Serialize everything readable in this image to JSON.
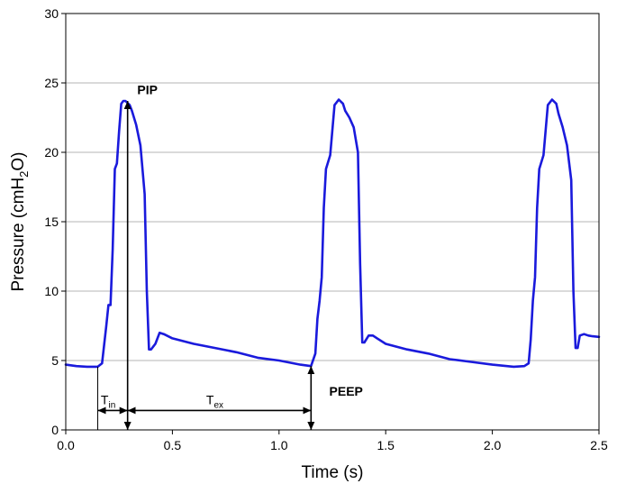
{
  "chart_data": {
    "type": "line",
    "title": "",
    "xlabel": "Time (s)",
    "ylabel": {
      "prefix": "Pressure (cmH",
      "sub": "2",
      "suffix": "O)"
    },
    "xlim": [
      0,
      2.5
    ],
    "ylim": [
      0,
      30
    ],
    "grid": {
      "y": true,
      "x": false
    },
    "x_ticks": [
      {
        "value": 0.0,
        "label": "0.0"
      },
      {
        "value": 0.5,
        "label": "0.5"
      },
      {
        "value": 1.0,
        "label": "1.0"
      },
      {
        "value": 1.5,
        "label": "1.5"
      },
      {
        "value": 2.0,
        "label": "2.0"
      },
      {
        "value": 2.5,
        "label": "2.5"
      }
    ],
    "y_ticks": [
      {
        "value": 0,
        "label": "0"
      },
      {
        "value": 5,
        "label": "5"
      },
      {
        "value": 10,
        "label": "10"
      },
      {
        "value": 15,
        "label": "15"
      },
      {
        "value": 20,
        "label": "20"
      },
      {
        "value": 25,
        "label": "25"
      },
      {
        "value": 30,
        "label": "30"
      }
    ],
    "series": [
      {
        "name": "pressure",
        "color": "#1a1adc",
        "x": [
          0.0,
          0.05,
          0.1,
          0.15,
          0.17,
          0.19,
          0.2,
          0.21,
          0.22,
          0.23,
          0.24,
          0.25,
          0.26,
          0.27,
          0.28,
          0.3,
          0.31,
          0.33,
          0.35,
          0.37,
          0.38,
          0.39,
          0.4,
          0.42,
          0.44,
          0.46,
          0.5,
          0.6,
          0.7,
          0.8,
          0.9,
          1.0,
          1.1,
          1.15,
          1.17,
          1.18,
          1.19,
          1.2,
          1.21,
          1.22,
          1.24,
          1.26,
          1.28,
          1.3,
          1.31,
          1.33,
          1.35,
          1.37,
          1.38,
          1.39,
          1.4,
          1.42,
          1.44,
          1.46,
          1.5,
          1.6,
          1.7,
          1.8,
          1.9,
          2.0,
          2.1,
          2.15,
          2.17,
          2.18,
          2.19,
          2.2,
          2.21,
          2.22,
          2.24,
          2.26,
          2.28,
          2.3,
          2.31,
          2.33,
          2.35,
          2.37,
          2.38,
          2.39,
          2.4,
          2.41,
          2.43,
          2.45,
          2.47,
          2.5
        ],
        "y": [
          4.7,
          4.6,
          4.55,
          4.55,
          4.8,
          7.5,
          9.0,
          9.0,
          13.0,
          18.8,
          19.2,
          21.5,
          23.5,
          23.7,
          23.7,
          23.4,
          23.0,
          22.0,
          20.5,
          17.0,
          10.0,
          5.8,
          5.8,
          6.2,
          7.0,
          6.9,
          6.6,
          6.2,
          5.9,
          5.6,
          5.2,
          5.0,
          4.7,
          4.6,
          5.5,
          8.0,
          9.3,
          11.0,
          16.0,
          18.8,
          19.8,
          23.4,
          23.8,
          23.5,
          23.0,
          22.5,
          21.8,
          20.0,
          12.0,
          6.3,
          6.3,
          6.8,
          6.8,
          6.6,
          6.2,
          5.8,
          5.5,
          5.1,
          4.9,
          4.7,
          4.55,
          4.6,
          4.8,
          6.5,
          9.3,
          11.0,
          16.0,
          18.8,
          19.8,
          23.4,
          23.8,
          23.5,
          22.8,
          21.8,
          20.5,
          18.0,
          10.0,
          5.9,
          5.9,
          6.8,
          6.9,
          6.8,
          6.75,
          6.7
        ]
      }
    ],
    "annotations": {
      "pip": {
        "text": "PIP",
        "x": 0.31,
        "y": 24.2
      },
      "peep": {
        "text": "PEEP",
        "x": 1.21,
        "y": 2.4
      },
      "t_in": {
        "text": "T",
        "sub": "in",
        "x_start": 0.15,
        "x_end": 0.29,
        "y": 1.4
      },
      "t_ex": {
        "text": "T",
        "sub": "ex",
        "x_start": 0.29,
        "x_end": 1.15,
        "y": 1.4
      },
      "pip_arrow": {
        "x": 0.29,
        "y_from": 0,
        "y_to": 23.7
      },
      "peep_arrow": {
        "x": 1.15,
        "y_from": 0,
        "y_to": 4.6
      },
      "t_start_line": {
        "x": 0.15,
        "y_from": 0,
        "y_to": 4.55
      }
    }
  }
}
